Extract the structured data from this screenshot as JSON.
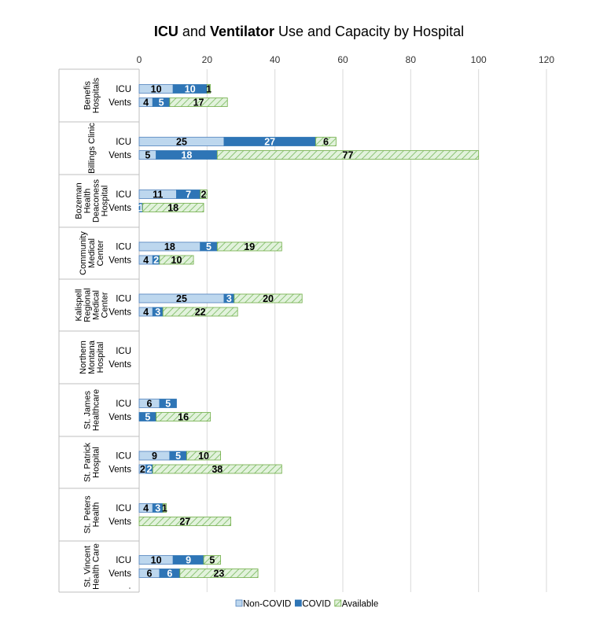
{
  "chart_data": {
    "type": "bar",
    "orientation": "horizontal",
    "stacked": true,
    "title_parts": [
      {
        "text": "ICU",
        "bold": true
      },
      {
        "text": " and ",
        "bold": false
      },
      {
        "text": "Ventilator",
        "bold": true
      },
      {
        "text": " Use and Capacity by Hospital",
        "bold": false
      }
    ],
    "xlim": [
      0,
      120
    ],
    "xticks": [
      0,
      20,
      40,
      60,
      80,
      100,
      120
    ],
    "grid": true,
    "legend_position": "bottom",
    "series": [
      {
        "name": "Non-COVID",
        "color": "#bdd7ee",
        "stroke": "#4f81bd"
      },
      {
        "name": "COVID",
        "color": "#2e75b6",
        "stroke": "#2e75b6"
      },
      {
        "name": "Available",
        "color": "#d9f0d3",
        "stroke": "#70ad47",
        "hatch": true
      }
    ],
    "hospitals": [
      {
        "lines": [
          "Benefis",
          "Hospitals"
        ],
        "rows": [
          {
            "label": "ICU",
            "values": [
              10,
              10,
              1
            ]
          },
          {
            "label": "Vents",
            "values": [
              4,
              5,
              17
            ]
          }
        ]
      },
      {
        "lines": [
          "Billings Clinic"
        ],
        "rows": [
          {
            "label": "ICU",
            "values": [
              25,
              27,
              6
            ]
          },
          {
            "label": "Vents",
            "values": [
              5,
              18,
              77
            ]
          }
        ]
      },
      {
        "lines": [
          "Bozeman",
          "Health",
          "Deaconess",
          "Hospital"
        ],
        "rows": [
          {
            "label": "ICU",
            "values": [
              11,
              7,
              2
            ]
          },
          {
            "label": "Vents",
            "values": [
              0,
              1,
              18
            ]
          }
        ]
      },
      {
        "lines": [
          "Community",
          "Medical",
          "Center"
        ],
        "rows": [
          {
            "label": "ICU",
            "values": [
              18,
              5,
              19
            ]
          },
          {
            "label": "Vents",
            "values": [
              4,
              2,
              10
            ]
          }
        ]
      },
      {
        "lines": [
          "Kalispell",
          "Regional",
          "Medical",
          "Center"
        ],
        "rows": [
          {
            "label": "ICU",
            "values": [
              25,
              3,
              20
            ]
          },
          {
            "label": "Vents",
            "values": [
              4,
              3,
              22
            ]
          }
        ]
      },
      {
        "lines": [
          "Northern",
          "Montana",
          "Hospital"
        ],
        "rows": [
          {
            "label": "ICU",
            "values": [
              0,
              0,
              0
            ]
          },
          {
            "label": "Vents",
            "values": [
              0,
              0,
              0
            ]
          }
        ]
      },
      {
        "lines": [
          "St. James",
          "Healthcare"
        ],
        "rows": [
          {
            "label": "ICU",
            "values": [
              6,
              5,
              0
            ]
          },
          {
            "label": "Vents",
            "values": [
              0,
              5,
              16
            ]
          }
        ]
      },
      {
        "lines": [
          "St. Patrick",
          "Hospital"
        ],
        "rows": [
          {
            "label": "ICU",
            "values": [
              9,
              5,
              10
            ]
          },
          {
            "label": "Vents",
            "values": [
              2,
              2,
              38
            ]
          }
        ]
      },
      {
        "lines": [
          "St. Peters",
          "Health"
        ],
        "rows": [
          {
            "label": "ICU",
            "values": [
              4,
              3,
              1
            ]
          },
          {
            "label": "Vents",
            "values": [
              0,
              0,
              27
            ]
          }
        ]
      },
      {
        "lines": [
          "St. Vincent",
          "Health Care"
        ],
        "rows": [
          {
            "label": "ICU",
            "values": [
              10,
              9,
              5
            ]
          },
          {
            "label": "Vents",
            "values": [
              6,
              6,
              23
            ]
          }
        ]
      }
    ]
  }
}
